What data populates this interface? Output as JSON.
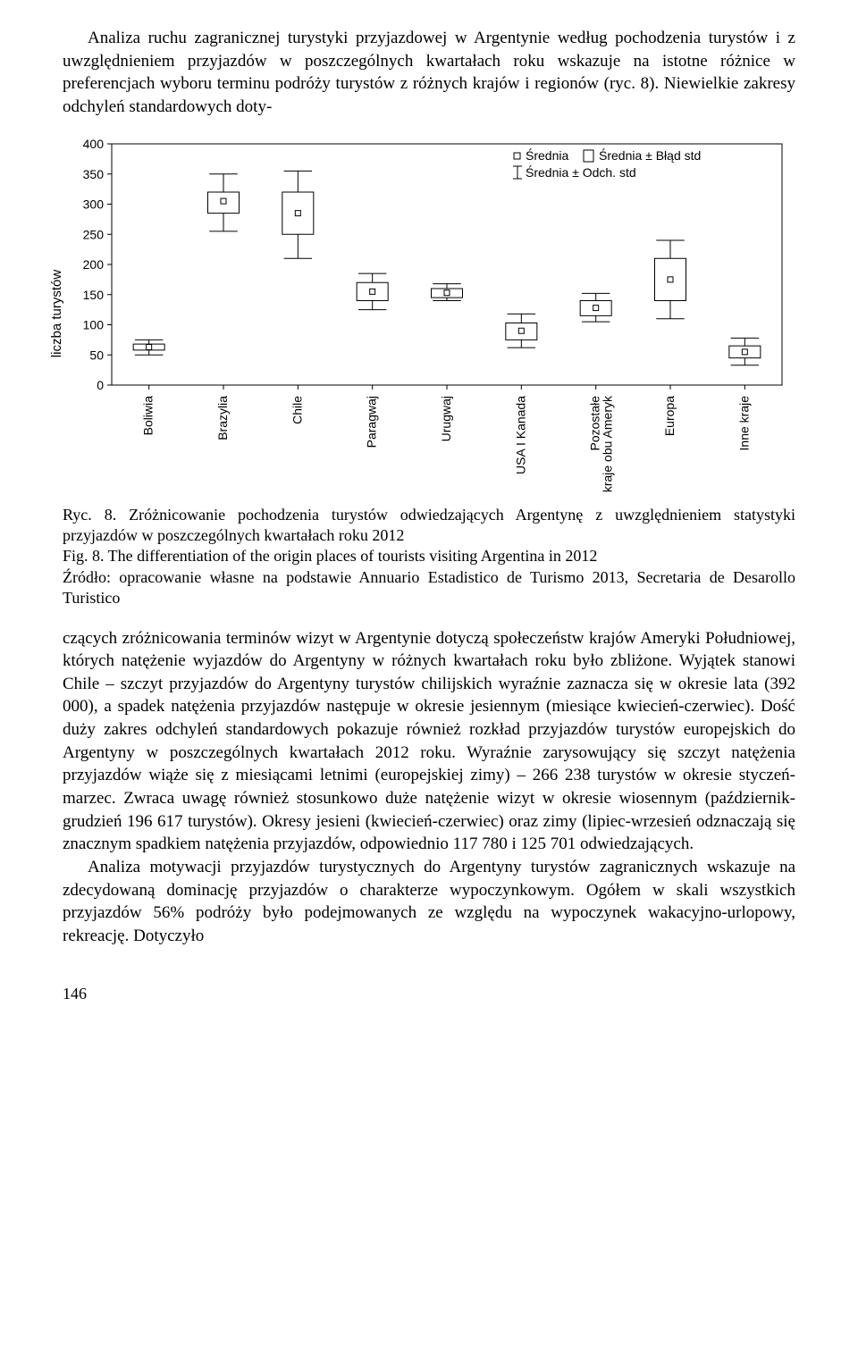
{
  "paragraphs": {
    "intro": "Analiza ruchu zagranicznej turystyki przyjazdowej w Argentynie według pochodzenia turystów i z uwzględnieniem przyjazdów w poszczególnych kwartałach roku wskazuje na istotne różnice w preferencjach wyboru terminu podróży turystów z różnych krajów i regionów (ryc. 8). Niewielkie zakresy odchyleń standardowych doty-",
    "main1": "czących zróżnicowania terminów wizyt w Argentynie dotyczą społeczeństw krajów Ameryki Południowej, których natężenie wyjazdów do Argentyny w różnych kwartałach roku było zbliżone. Wyjątek stanowi Chile – szczyt przyjazdów do Argentyny turystów chilijskich wyraźnie zaznacza się w okresie lata (392 000), a spadek natężenia przyjazdów następuje w okresie jesiennym (miesiące kwiecień-czerwiec). Dość duży zakres odchyleń standardowych pokazuje również rozkład przyjazdów turystów europejskich do Argentyny w poszczególnych kwartałach 2012 roku. Wyraźnie zarysowujący się szczyt natężenia przyjazdów wiąże się z miesiącami letnimi (europejskiej zimy) – 266 238 turystów w okresie styczeń-marzec. Zwraca uwagę również stosunkowo duże natężenie wizyt w okresie wiosennym (październik-grudzień 196 617 turystów). Okresy jesieni (kwiecień-czerwiec) oraz zimy (lipiec-wrzesień odznaczają się znacznym spadkiem natężenia przyjazdów, odpowiednio 117 780 i 125 701 odwiedzających.",
    "main2": "Analiza motywacji przyjazdów turystycznych do Argentyny turystów zagranicznych wskazuje na zdecydowaną dominację przyjazdów o charakterze wypoczynkowym. Ogółem w skali wszystkich przyjazdów 56% podróży było podejmowanych ze względu na wypoczynek wakacyjno-urlopowy, rekreację. Dotyczyło"
  },
  "caption": {
    "line1": "Ryc. 8. Zróżnicowanie pochodzenia turystów odwiedzających Argentynę z uwzględnieniem statystyki przyjazdów w poszczególnych kwartałach roku 2012",
    "line2": "Fig. 8. The differentiation of the origin places of tourists visiting Argentina in 2012",
    "line3": "Źródło: opracowanie własne na podstawie Annuario Estadistico de Turismo 2013, Secretaria de Desarollo Turistico"
  },
  "chart": {
    "type": "boxplot",
    "ylabel": "liczba turystów",
    "ylim": [
      0,
      400
    ],
    "ytick_step": 50,
    "yticks": [
      0,
      50,
      100,
      150,
      200,
      250,
      300,
      350,
      400
    ],
    "background_color": "#ffffff",
    "frame_color": "#000000",
    "box_fill": "#ffffff",
    "box_stroke": "#000000",
    "whisker_stroke": "#000000",
    "mean_marker": "square-open",
    "mean_marker_size": 6,
    "legend": {
      "mean_label": "Średnia",
      "se_label": "Średnia ± Błąd std",
      "sd_label": "Średnia ± Odch. std"
    },
    "categories": [
      {
        "label": "Boliwia",
        "mean": 63,
        "se_low": 58,
        "se_high": 68,
        "sd_low": 50,
        "sd_high": 75
      },
      {
        "label": "Brazylia",
        "mean": 305,
        "se_low": 285,
        "se_high": 320,
        "sd_low": 255,
        "sd_high": 350
      },
      {
        "label": "Chile",
        "mean": 285,
        "se_low": 250,
        "se_high": 320,
        "sd_low": 210,
        "sd_high": 355
      },
      {
        "label": "Paragwaj",
        "mean": 155,
        "se_low": 140,
        "se_high": 170,
        "sd_low": 125,
        "sd_high": 185
      },
      {
        "label": "Urugwaj",
        "mean": 153,
        "se_low": 145,
        "se_high": 160,
        "sd_low": 140,
        "sd_high": 168
      },
      {
        "label": "USA I Kanada",
        "mean": 90,
        "se_low": 75,
        "se_high": 103,
        "sd_low": 62,
        "sd_high": 118
      },
      {
        "label": "Pozostałe\nkraje obu Ameryk",
        "mean": 128,
        "se_low": 115,
        "se_high": 140,
        "sd_low": 105,
        "sd_high": 152
      },
      {
        "label": "Europa",
        "mean": 175,
        "se_low": 140,
        "se_high": 210,
        "sd_low": 110,
        "sd_high": 240
      },
      {
        "label": "Inne kraje",
        "mean": 55,
        "se_low": 45,
        "se_high": 65,
        "sd_low": 33,
        "sd_high": 78
      }
    ]
  },
  "page_number": "146"
}
